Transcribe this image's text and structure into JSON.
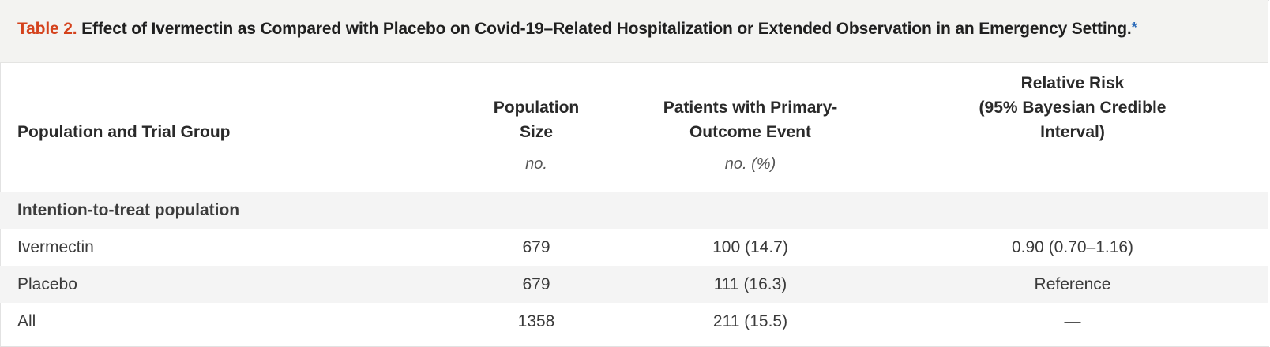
{
  "caption": {
    "label": "Table 2.",
    "title": "Effect of Ivermectin as Compared with Placebo on Covid-19–Related Hospitalization or Extended Observation in an Emergency Setting.",
    "footnote_mark": "*"
  },
  "table": {
    "headers": [
      "Population and Trial Group",
      "Population Size",
      "Patients with Primary-Outcome Event",
      "Relative Risk (95% Bayesian Credible Interval)"
    ],
    "header_lines": {
      "col1": [
        "Population",
        "Size"
      ],
      "col2": [
        "Patients with Primary-",
        "Outcome Event"
      ],
      "col3": [
        "Relative Risk",
        "(95% Bayesian Credible",
        "Interval)"
      ]
    },
    "units": [
      "",
      "no.",
      "no. (%)",
      ""
    ],
    "section": "Intention-to-treat population",
    "rows": [
      {
        "group": "Ivermectin",
        "size": "679",
        "events": "100 (14.7)",
        "rr": "0.90 (0.70–1.16)"
      },
      {
        "group": "Placebo",
        "size": "679",
        "events": "111 (16.3)",
        "rr": "Reference"
      },
      {
        "group": "All",
        "size": "1358",
        "events": "211 (15.5)",
        "rr": "—"
      }
    ]
  }
}
